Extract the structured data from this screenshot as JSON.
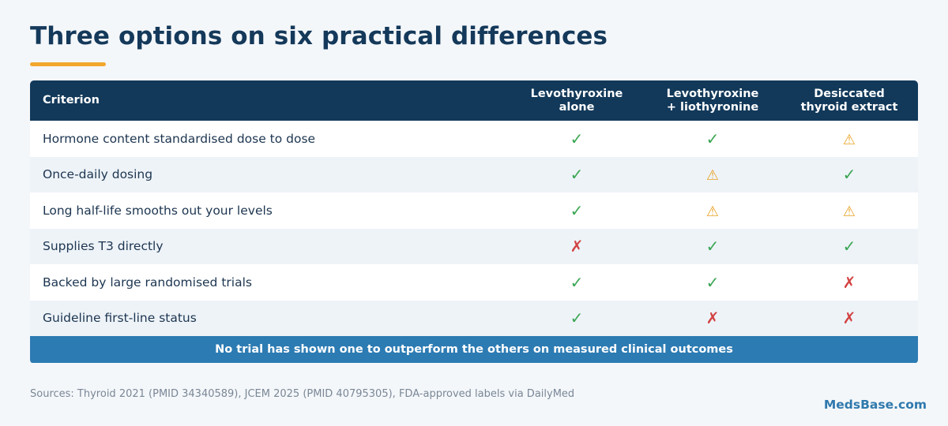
{
  "title": "Three options on six practical differences",
  "colors": {
    "header_bg": "#12395a",
    "accent": "#f2a72e",
    "check": "#3aa552",
    "warn": "#e9a326",
    "cross": "#d24242",
    "footer_bar": "#2c7bb3",
    "brand": "#2f79ad"
  },
  "table": {
    "header": {
      "criterion": "Criterion",
      "options": [
        {
          "line1": "Levothyroxine",
          "line2": "alone"
        },
        {
          "line1": "Levothyroxine",
          "line2": "+ liothyronine"
        },
        {
          "line1": "Desiccated",
          "line2": "thyroid extract"
        }
      ]
    },
    "symbols": {
      "check": "✓",
      "warn": "⚠",
      "cross": "✗"
    },
    "rows": [
      {
        "label": "Hormone content standardised dose to dose",
        "marks": [
          "check",
          "check",
          "warn"
        ]
      },
      {
        "label": "Once-daily dosing",
        "marks": [
          "check",
          "warn",
          "check"
        ]
      },
      {
        "label": "Long half-life smooths out your levels",
        "marks": [
          "check",
          "warn",
          "warn"
        ]
      },
      {
        "label": "Supplies T3 directly",
        "marks": [
          "cross",
          "check",
          "check"
        ]
      },
      {
        "label": "Backed by large randomised trials",
        "marks": [
          "check",
          "check",
          "cross"
        ]
      },
      {
        "label": "Guideline first-line status",
        "marks": [
          "check",
          "cross",
          "cross"
        ]
      }
    ],
    "footer_note": "No trial has shown one to outperform the others on measured clinical outcomes"
  },
  "sources": "Sources: Thyroid 2021 (PMID 34340589), JCEM 2025 (PMID 40795305), FDA-approved labels via DailyMed",
  "brand": "MedsBase.com"
}
